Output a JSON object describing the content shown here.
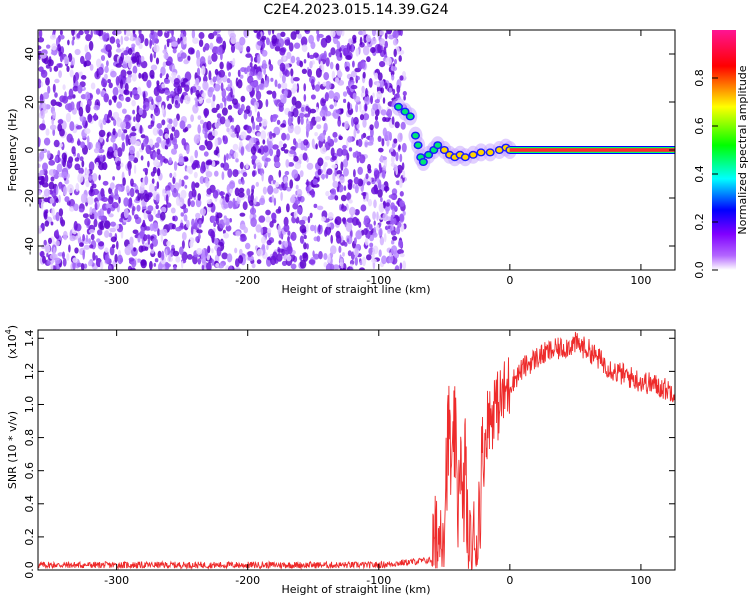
{
  "title": "C2E4.2023.015.14.39.G24",
  "chart_data": [
    {
      "type": "heatmap",
      "xlabel": "Height of straight line (km)",
      "ylabel": "Frequency (Hz)",
      "xlim": [
        -360,
        126
      ],
      "ylim": [
        -50,
        50
      ],
      "xticks": [
        -300,
        -200,
        -100,
        0,
        100
      ],
      "yticks": [
        -40,
        -20,
        0,
        20,
        40
      ],
      "colorbar": {
        "label": "Normalized spectral amplitude",
        "range": [
          0.0,
          1.0
        ],
        "ticks": [
          "0.0",
          "0.2",
          "0.4",
          "0.6",
          "0.8"
        ],
        "colors": [
          "#ffffff",
          "#8000ff",
          "#0000ff",
          "#00ffff",
          "#00ff00",
          "#ffff00",
          "#ff0000",
          "#ff1493"
        ]
      },
      "features": {
        "noise_region_x": [
          -360,
          -80
        ],
        "noise_color": "#7a1ee6",
        "signal_line_frequency_hz": 0,
        "signal_line_x": [
          0,
          126
        ],
        "signal_line_color": "#ff2a2a",
        "transition_trace": [
          [
            -85,
            18
          ],
          [
            -80,
            16
          ],
          [
            -76,
            14
          ],
          [
            -72,
            6
          ],
          [
            -70,
            2
          ],
          [
            -68,
            -3
          ],
          [
            -66,
            -5
          ],
          [
            -62,
            -2
          ],
          [
            -58,
            0
          ],
          [
            -55,
            2
          ],
          [
            -50,
            0
          ],
          [
            -46,
            -2
          ],
          [
            -42,
            -3
          ],
          [
            -38,
            -2
          ],
          [
            -34,
            -3
          ],
          [
            -28,
            -2
          ],
          [
            -22,
            -1
          ],
          [
            -15,
            -1
          ],
          [
            -8,
            0
          ],
          [
            -3,
            1
          ],
          [
            0,
            0
          ]
        ]
      }
    },
    {
      "type": "line",
      "xlabel": "Height of straight line (km)",
      "ylabel": "SNR (10 * v/v)",
      "y_multiplier_label": "(x10",
      "y_multiplier_exp": "4",
      "y_multiplier_close": ")",
      "xlim": [
        -360,
        126
      ],
      "ylim": [
        0,
        14500
      ],
      "xticks": [
        -300,
        -200,
        -100,
        0,
        100
      ],
      "yticks": [
        "0.0",
        "0.2",
        "0.4",
        "0.6",
        "0.8",
        "1.0",
        "1.2",
        "1.4"
      ],
      "ytick_values": [
        0,
        2000,
        4000,
        6000,
        8000,
        10000,
        12000,
        14000
      ],
      "series": [
        {
          "color": "#ee2b2b",
          "x": [
            -360,
            -300,
            -200,
            -100,
            -60,
            -55,
            -50,
            -48,
            -46,
            -44,
            -42,
            -40,
            -38,
            -36,
            -34,
            -32,
            -30,
            -28,
            -25,
            -22,
            -20,
            -18,
            -16,
            -14,
            -12,
            -10,
            -5,
            0,
            10,
            20,
            30,
            40,
            50,
            60,
            70,
            80,
            90,
            100,
            110,
            120,
            126
          ],
          "y": [
            300,
            300,
            300,
            300,
            600,
            1500,
            3500,
            7000,
            8500,
            4500,
            9000,
            3000,
            8000,
            2000,
            7500,
            500,
            600,
            1200,
            1800,
            5500,
            7000,
            8500,
            9500,
            9000,
            10200,
            9800,
            10500,
            11200,
            12200,
            12800,
            13200,
            13400,
            13700,
            13300,
            12600,
            12000,
            11700,
            11400,
            11200,
            10900,
            10800
          ]
        }
      ]
    }
  ]
}
